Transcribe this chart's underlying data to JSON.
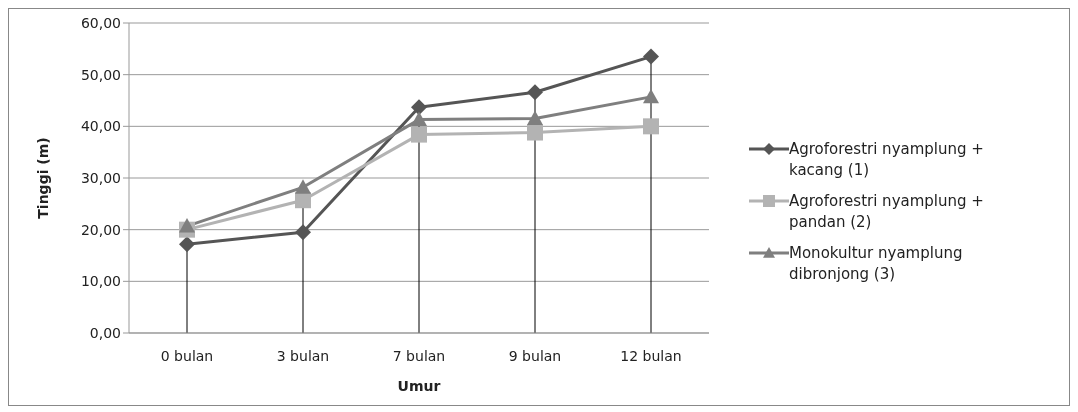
{
  "chart_data": {
    "type": "line",
    "xlabel": "Umur",
    "ylabel": "Tinggi (m)",
    "categories": [
      "0 bulan",
      "3 bulan",
      "7 bulan",
      "9 bulan",
      "12 bulan"
    ],
    "series": [
      {
        "name": "Agroforestri nyamplung + kacang (1)",
        "color": "#555555",
        "marker": "diamond",
        "values": [
          17.2,
          19.5,
          43.7,
          46.6,
          53.5
        ]
      },
      {
        "name": "Agroforestri nyamplung + pandan (2)",
        "color": "#b3b3b3",
        "marker": "square",
        "values": [
          20.0,
          25.7,
          38.4,
          38.8,
          40.0
        ]
      },
      {
        "name": "Monokultur nyamplung dibronjong  (3)",
        "color": "#7f7f7f",
        "marker": "triangle",
        "values": [
          20.7,
          28.2,
          41.3,
          41.5,
          45.7
        ]
      }
    ],
    "ylim": [
      0,
      60
    ],
    "yticks": [
      {
        "value": 0,
        "label": "0,00"
      },
      {
        "value": 10,
        "label": "10,00"
      },
      {
        "value": 20,
        "label": "20,00"
      },
      {
        "value": 30,
        "label": "30,00"
      },
      {
        "value": 40,
        "label": "40,00"
      },
      {
        "value": 50,
        "label": "50,00"
      },
      {
        "value": 60,
        "label": "60,00"
      }
    ],
    "ref_lines": [
      {
        "axis": "x",
        "value": "0 bulan",
        "color": "#000000"
      },
      {
        "axis": "x",
        "value": "3 bulan",
        "color": "#000000"
      },
      {
        "axis": "x",
        "value": "7 bulan",
        "color": "#000000"
      },
      {
        "axis": "x",
        "value": "9 bulan",
        "color": "#000000"
      },
      {
        "axis": "x",
        "value": "12 bulan",
        "color": "#000000"
      }
    ],
    "grid": "y",
    "legend": "right"
  }
}
